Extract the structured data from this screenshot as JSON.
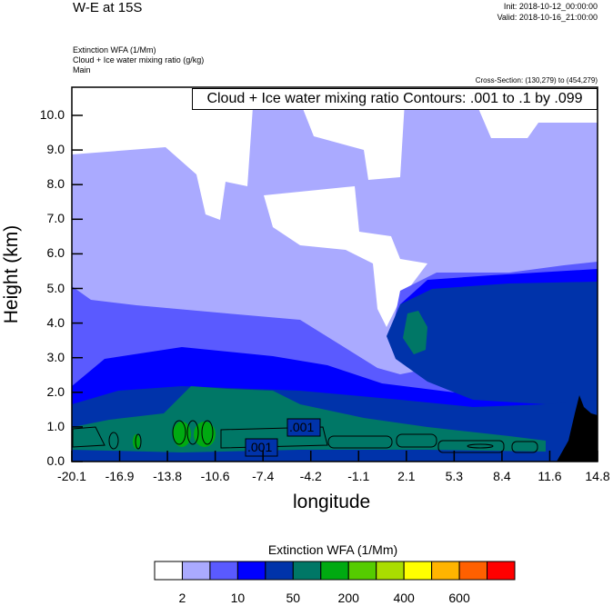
{
  "header": {
    "title": "W-E at 15S",
    "init": "Init: 2018-10-12_00:00:00",
    "valid": "Valid: 2018-10-16_21:00:00",
    "fields": [
      "Extinction WFA   (1/Mm)",
      "Cloud + Ice water mixing ratio   (g/kg)",
      "Main"
    ],
    "cross_section": "Cross-Section: (130,279) to (454,279)"
  },
  "chart_data": {
    "type": "heatmap",
    "subtype": "filled contour cross-section with line contours",
    "contour_title": "Cloud + Ice water mixing ratio Contours: .001 to .1 by .099",
    "contour_labels": [
      ".001",
      ".001"
    ],
    "xlabel": "longitude",
    "ylabel": "Height (km)",
    "xticks": [
      "-20.1",
      "-16.9",
      "-13.8",
      "-10.6",
      "-7.4",
      "-4.2",
      "-1.1",
      "2.1",
      "5.3",
      "8.4",
      "11.6",
      "14.8"
    ],
    "yticks": [
      "0.0",
      "1.0",
      "2.0",
      "3.0",
      "4.0",
      "5.0",
      "6.0",
      "7.0",
      "8.0",
      "9.0",
      "10.0"
    ],
    "xlim": [
      -20.1,
      14.8
    ],
    "ylim": [
      0,
      10.8
    ],
    "colorbar": {
      "title": "Extinction WFA  (1/Mm)",
      "colors": [
        "#ffffff",
        "#aaaaff",
        "#5a5aff",
        "#0000ff",
        "#0033aa",
        "#007766",
        "#00aa11",
        "#55cc00",
        "#aadd00",
        "#ffff00",
        "#ffb400",
        "#ff6000",
        "#ff0000"
      ],
      "labels": [
        "2",
        "10",
        "50",
        "200",
        "400",
        "600"
      ],
      "placement": "bottom"
    },
    "terrain_color": "#000000"
  }
}
